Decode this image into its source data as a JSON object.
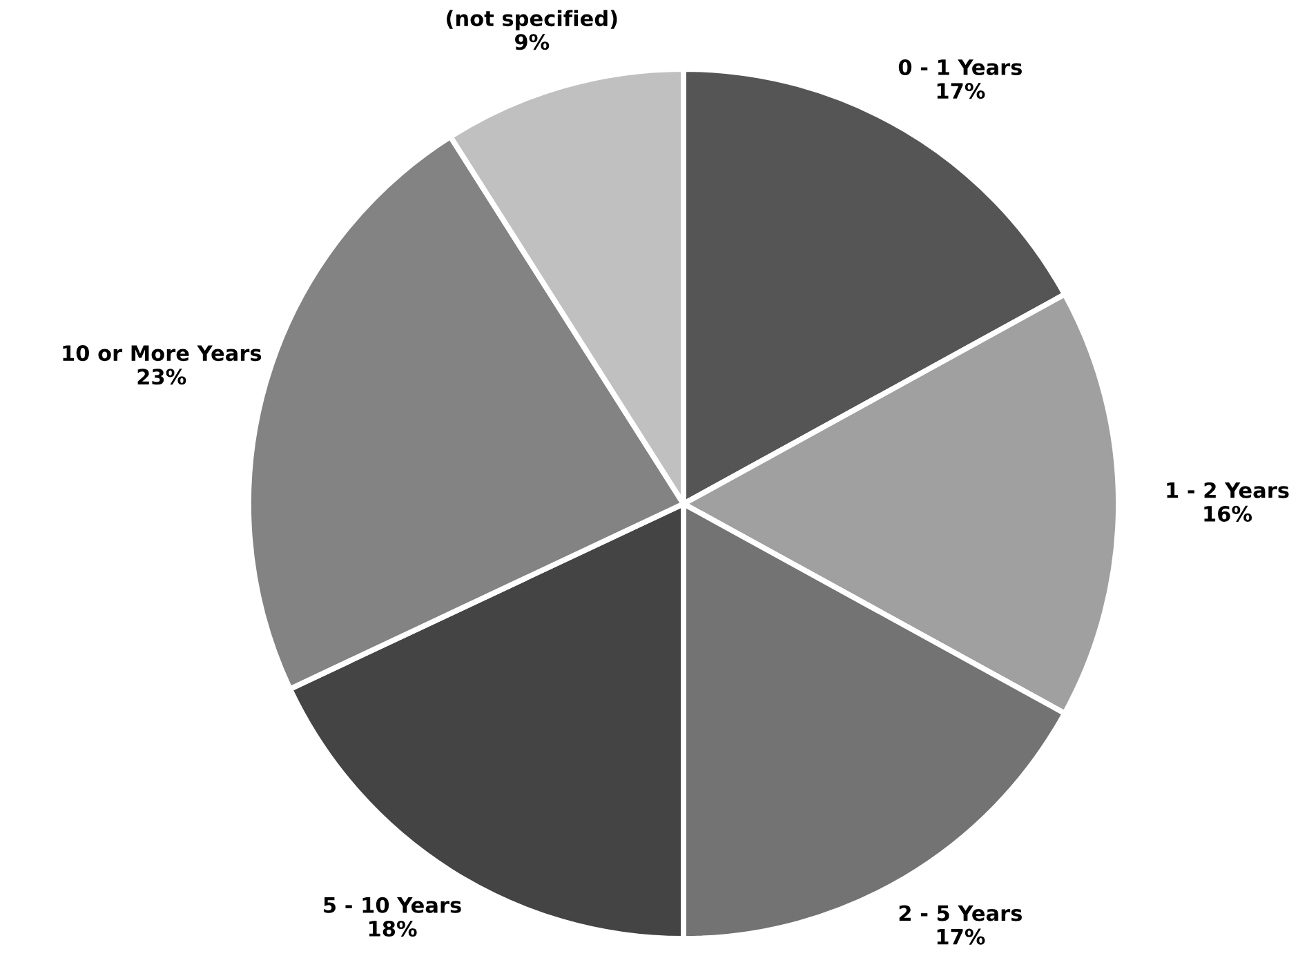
{
  "chart_data": {
    "type": "pie",
    "categories": [
      "0 - 1 Years",
      "1 - 2 Years",
      "2 - 5 Years",
      "5 - 10 Years",
      "10 or More Years",
      "(not specified)"
    ],
    "values": [
      17,
      16,
      17,
      18,
      23,
      9
    ],
    "value_labels": [
      "17%",
      "16%",
      "17%",
      "18%",
      "23%",
      "9%"
    ],
    "colors": [
      "#555555",
      "#a0a0a0",
      "#737373",
      "#444444",
      "#838383",
      "#c0c0c0"
    ]
  }
}
